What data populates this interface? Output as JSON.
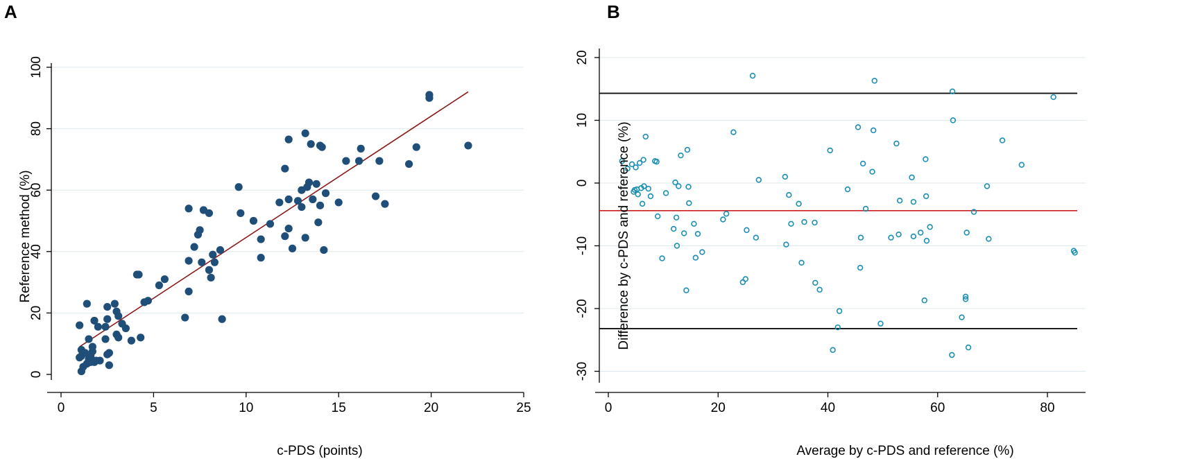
{
  "chart_data": [
    {
      "panel": "A",
      "type": "scatter",
      "xlabel": "c-PDS (points)",
      "ylabel": "Reference method (%)",
      "xlim": [
        0,
        25
      ],
      "ylim": [
        0,
        100
      ],
      "xticks": [
        0,
        5,
        10,
        15,
        20,
        25
      ],
      "yticks": [
        0,
        20,
        40,
        60,
        80,
        100
      ],
      "grid": "horizontal",
      "colors": {
        "marker": "#1f4e79",
        "fit_line": "#8b1a1a",
        "grid": "#dde8ee"
      },
      "fit_line": {
        "x": [
          1,
          22
        ],
        "y": [
          9,
          92
        ]
      },
      "points": [
        [
          1,
          16
        ],
        [
          1,
          5.5
        ],
        [
          1.1,
          8
        ],
        [
          1.1,
          6
        ],
        [
          1.1,
          1
        ],
        [
          1.2,
          2.5
        ],
        [
          1.3,
          7
        ],
        [
          1.4,
          23
        ],
        [
          1.4,
          3.5
        ],
        [
          1.5,
          5
        ],
        [
          1.5,
          11.5
        ],
        [
          1.6,
          6
        ],
        [
          1.6,
          4
        ],
        [
          1.7,
          9
        ],
        [
          1.7,
          7.5
        ],
        [
          1.8,
          4
        ],
        [
          1.8,
          17.5
        ],
        [
          1.9,
          4.5
        ],
        [
          2,
          15.5
        ],
        [
          2.1,
          4.5
        ],
        [
          2.4,
          11.5
        ],
        [
          2.4,
          15.5
        ],
        [
          2.5,
          18
        ],
        [
          2.5,
          22
        ],
        [
          2.5,
          6.5
        ],
        [
          2.6,
          7
        ],
        [
          2.6,
          3
        ],
        [
          2.9,
          23
        ],
        [
          3,
          20.5
        ],
        [
          3,
          13
        ],
        [
          3.1,
          12
        ],
        [
          3.1,
          19
        ],
        [
          3.3,
          16.5
        ],
        [
          3.5,
          15
        ],
        [
          3.8,
          11
        ],
        [
          4.1,
          32.5
        ],
        [
          4.2,
          32.5
        ],
        [
          4.3,
          12
        ],
        [
          4.5,
          23.5
        ],
        [
          4.7,
          24
        ],
        [
          5.3,
          29
        ],
        [
          5.6,
          31
        ],
        [
          6.7,
          18.5
        ],
        [
          6.9,
          54
        ],
        [
          6.9,
          37
        ],
        [
          6.9,
          27
        ],
        [
          7.2,
          41.5
        ],
        [
          7.4,
          45.5
        ],
        [
          7.5,
          47
        ],
        [
          7.6,
          36.5
        ],
        [
          7.7,
          53.5
        ],
        [
          8,
          52.5
        ],
        [
          8,
          34
        ],
        [
          8.1,
          31.5
        ],
        [
          8.2,
          39
        ],
        [
          8.3,
          36.5
        ],
        [
          8.6,
          40.5
        ],
        [
          8.7,
          18
        ],
        [
          9.6,
          61
        ],
        [
          9.7,
          52.5
        ],
        [
          10.4,
          50
        ],
        [
          10.8,
          44
        ],
        [
          10.8,
          38
        ],
        [
          11.3,
          49
        ],
        [
          11.8,
          56
        ],
        [
          12.1,
          67
        ],
        [
          12.3,
          76.5
        ],
        [
          12.3,
          57
        ],
        [
          12.3,
          47.5
        ],
        [
          12.5,
          41
        ],
        [
          12.8,
          56.5
        ],
        [
          13,
          60
        ],
        [
          13,
          54.5
        ],
        [
          13.2,
          78.5
        ],
        [
          13.3,
          61
        ],
        [
          13.4,
          62.5
        ],
        [
          13.5,
          75
        ],
        [
          13.6,
          57
        ],
        [
          13.8,
          62
        ],
        [
          13.9,
          49.5
        ],
        [
          14,
          74.5
        ],
        [
          14.2,
          40.5
        ],
        [
          14,
          55
        ],
        [
          14.1,
          74
        ],
        [
          14.3,
          59
        ],
        [
          15,
          56
        ],
        [
          15.4,
          69.5
        ],
        [
          16.1,
          69.5
        ],
        [
          16.2,
          73.5
        ],
        [
          17,
          58
        ],
        [
          17.2,
          69.5
        ],
        [
          17.5,
          55.5
        ],
        [
          18.8,
          68.5
        ],
        [
          19.2,
          74
        ],
        [
          19.9,
          91
        ],
        [
          19.9,
          90
        ],
        [
          22,
          74.5
        ],
        [
          13.2,
          44.5
        ],
        [
          12.1,
          45
        ]
      ]
    },
    {
      "panel": "B",
      "type": "scatter",
      "xlabel": "Average by c-PDS and reference (%)",
      "ylabel": "Difference by c-PDS and reference (%)",
      "xlim": [
        0,
        87
      ],
      "ylim": [
        -31,
        21
      ],
      "xticks": [
        0,
        20,
        40,
        60,
        80
      ],
      "yticks": [
        -30,
        -20,
        -10,
        0,
        10,
        20
      ],
      "grid": "horizontal",
      "colors": {
        "marker": "#1a8fb3",
        "mean_line": "#cc1f1f",
        "limit_lines": "#111111",
        "grid": "#dde8ee"
      },
      "mean_difference": -4.4,
      "limits_of_agreement": [
        14.3,
        -23.2
      ],
      "points": [
        [
          2.5,
          3.5
        ],
        [
          3.5,
          2.3
        ],
        [
          4.3,
          3
        ],
        [
          4.6,
          -1.4
        ],
        [
          4.8,
          -1.1
        ],
        [
          5,
          2.5
        ],
        [
          5.2,
          -1
        ],
        [
          5.4,
          -1.8
        ],
        [
          5.7,
          3.2
        ],
        [
          6,
          -0.8
        ],
        [
          6.2,
          -3.3
        ],
        [
          6.4,
          3.7
        ],
        [
          6.5,
          -0.5
        ],
        [
          6.8,
          7.4
        ],
        [
          7.3,
          -0.9
        ],
        [
          7.7,
          -2.1
        ],
        [
          8.5,
          3.5
        ],
        [
          8.8,
          3.4
        ],
        [
          9,
          -5.3
        ],
        [
          9.8,
          -12
        ],
        [
          10.5,
          -1.6
        ],
        [
          11.9,
          -7.3
        ],
        [
          12.2,
          0.1
        ],
        [
          12.4,
          -5.5
        ],
        [
          12.5,
          -10
        ],
        [
          12.8,
          -0.5
        ],
        [
          13.2,
          4.4
        ],
        [
          13.8,
          -8
        ],
        [
          14.2,
          -17.1
        ],
        [
          14.4,
          5.3
        ],
        [
          14.6,
          -0.6
        ],
        [
          14.7,
          -3.2
        ],
        [
          15.6,
          -6.5
        ],
        [
          15.9,
          -11.9
        ],
        [
          16.3,
          -8.1
        ],
        [
          17.1,
          -11
        ],
        [
          20.9,
          -5.8
        ],
        [
          21.5,
          -4.9
        ],
        [
          22.8,
          8.1
        ],
        [
          24.5,
          -15.8
        ],
        [
          25,
          -15.3
        ],
        [
          25.2,
          -7.5
        ],
        [
          26.3,
          17.1
        ],
        [
          26.9,
          -8.7
        ],
        [
          27.4,
          0.5
        ],
        [
          32.2,
          1
        ],
        [
          32.4,
          -9.8
        ],
        [
          32.9,
          -1.9
        ],
        [
          33.3,
          -6.5
        ],
        [
          34.7,
          -3.3
        ],
        [
          35.2,
          -12.7
        ],
        [
          35.7,
          -6.2
        ],
        [
          37.6,
          -6.3
        ],
        [
          37.7,
          -15.9
        ],
        [
          38.5,
          -17
        ],
        [
          40.4,
          5.2
        ],
        [
          40.9,
          -26.6
        ],
        [
          41.8,
          -23
        ],
        [
          42.1,
          -20.4
        ],
        [
          43.6,
          -1
        ],
        [
          45.5,
          8.9
        ],
        [
          45.9,
          -13.5
        ],
        [
          46,
          -8.7
        ],
        [
          46.4,
          3.1
        ],
        [
          46.9,
          -4.1
        ],
        [
          48.1,
          1.8
        ],
        [
          48.3,
          8.4
        ],
        [
          48.5,
          16.3
        ],
        [
          49.6,
          -22.4
        ],
        [
          51.5,
          -8.7
        ],
        [
          52.5,
          6.3
        ],
        [
          52.9,
          -8.2
        ],
        [
          53.1,
          -2.8
        ],
        [
          55.3,
          0.9
        ],
        [
          55.6,
          -3
        ],
        [
          55.6,
          -8.5
        ],
        [
          56.9,
          -7.9
        ],
        [
          57.6,
          -18.7
        ],
        [
          57.8,
          3.8
        ],
        [
          57.9,
          -2.1
        ],
        [
          58,
          -9.2
        ],
        [
          58.6,
          -7
        ],
        [
          62.6,
          -27.4
        ],
        [
          62.7,
          14.6
        ],
        [
          62.8,
          10
        ],
        [
          64.4,
          -21.4
        ],
        [
          65.1,
          -18.5
        ],
        [
          65.1,
          -18.1
        ],
        [
          65.3,
          -7.9
        ],
        [
          65.6,
          -26.2
        ],
        [
          66.6,
          -4.6
        ],
        [
          69,
          -0.5
        ],
        [
          69.3,
          -8.9
        ],
        [
          71.8,
          6.8
        ],
        [
          75.3,
          2.9
        ],
        [
          81.1,
          13.7
        ],
        [
          84.8,
          -10.8
        ],
        [
          85,
          -11.1
        ]
      ]
    }
  ],
  "panels": {
    "a": {
      "letter": "A",
      "xlabel": "c-PDS (points)",
      "ylabel": "Reference method (%)"
    },
    "b": {
      "letter": "B",
      "xlabel": "Average by c-PDS and reference (%)",
      "ylabel": "Difference by c-PDS and reference (%)"
    }
  }
}
